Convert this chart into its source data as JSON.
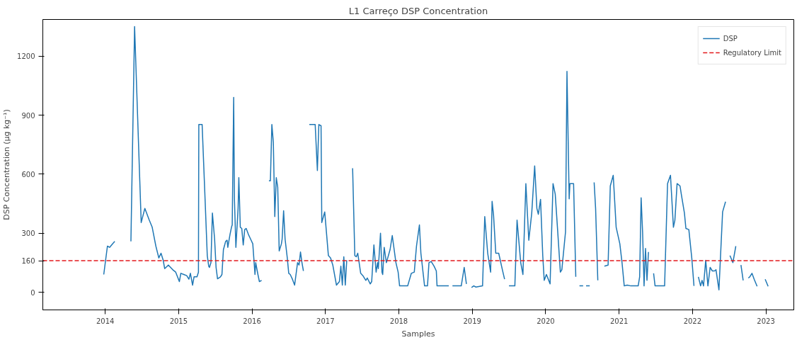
{
  "chart_data": {
    "type": "line",
    "title": "L1 Carreço DSP Concentration",
    "xlabel": "Samples",
    "ylabel": "DSP Concentration (µg kg⁻¹)",
    "xlim": [
      2013.15,
      2023.38
    ],
    "ylim": [
      -90,
      1386
    ],
    "xticks": [
      2014,
      2015,
      2016,
      2017,
      2018,
      2019,
      2020,
      2021,
      2022,
      2023
    ],
    "yticks": [
      0,
      160,
      300,
      600,
      900,
      1200
    ],
    "grid": false,
    "legend": "top right",
    "line_style": "solid",
    "marker": "none",
    "series": [
      {
        "name": "DSP",
        "color": "#1f77b4",
        "x": [
          2013.98,
          2014.03,
          2014.06,
          2014.1,
          2014.13,
          2014.23,
          2014.35,
          2014.4,
          2014.49,
          2014.54,
          2014.6,
          2014.64,
          2014.69,
          2014.73,
          2014.76,
          2014.79,
          2014.81,
          2014.86,
          2014.92,
          2014.96,
          2015.01,
          2015.03,
          2015.07,
          2015.11,
          2015.14,
          2015.16,
          2015.19,
          2015.21,
          2015.25,
          2015.27,
          2015.275,
          2015.32,
          2015.36,
          2015.39,
          2015.41,
          2015.42,
          2015.44,
          2015.46,
          2015.49,
          2015.51,
          2015.53,
          2015.57,
          2015.59,
          2015.61,
          2015.64,
          2015.66,
          2015.67,
          2015.7,
          2015.72,
          2015.73,
          2015.75,
          2015.76,
          2015.78,
          2015.81,
          2015.82,
          2015.84,
          2015.86,
          2015.88,
          2015.9,
          2015.92,
          2015.95,
          2015.98,
          2016.01,
          2016.04,
          2016.05,
          2016.08,
          2016.1,
          2016.13,
          2016.18,
          2016.23,
          2016.25,
          2016.27,
          2016.29,
          2016.31,
          2016.33,
          2016.35,
          2016.37,
          2016.4,
          2016.41,
          2016.43,
          2016.45,
          2016.48,
          2016.5,
          2016.52,
          2016.55,
          2016.58,
          2016.62,
          2016.64,
          2016.66,
          2016.68,
          2016.7,
          2016.74,
          2016.78,
          2016.86,
          2016.89,
          2016.91,
          2016.94,
          2016.95,
          2016.99,
          2017.04,
          2017.07,
          2017.1,
          2017.15,
          2017.19,
          2017.21,
          2017.23,
          2017.25,
          2017.27,
          2017.29,
          2017.32,
          2017.37,
          2017.4,
          2017.42,
          2017.44,
          2017.48,
          2017.51,
          2017.55,
          2017.57,
          2017.61,
          2017.63,
          2017.66,
          2017.69,
          2017.71,
          2017.72,
          2017.75,
          2017.77,
          2017.78,
          2017.8,
          2017.83,
          2017.88,
          2017.91,
          2017.96,
          2017.99,
          2018.01,
          2018.12,
          2018.17,
          2018.21,
          2018.24,
          2018.28,
          2018.3,
          2018.35,
          2018.39,
          2018.41,
          2018.44,
          2018.48,
          2018.51,
          2018.52,
          2018.68,
          2018.7,
          2018.73,
          2018.85,
          2018.89,
          2018.92,
          2018.96,
          2018.99,
          2019.02,
          2019.05,
          2019.14,
          2019.17,
          2019.21,
          2019.25,
          2019.27,
          2019.29,
          2019.32,
          2019.36,
          2019.41,
          2019.44,
          2019.47,
          2019.5,
          2019.58,
          2019.61,
          2019.66,
          2019.69,
          2019.73,
          2019.77,
          2019.81,
          2019.85,
          2019.88,
          2019.9,
          2019.93,
          2019.96,
          2019.98,
          2020.01,
          2020.06,
          2020.1,
          2020.13,
          2020.16,
          2020.2,
          2020.22,
          2020.27,
          2020.29,
          2020.32,
          2020.33,
          2020.38,
          2020.41,
          2020.44,
          2020.46,
          2020.51,
          2020.53,
          2020.55,
          2020.6,
          2020.63,
          2020.66,
          2020.68,
          2020.71,
          2020.75,
          2020.8,
          2020.85,
          2020.88,
          2020.92,
          2020.96,
          2021.01,
          2021.04,
          2021.07,
          2021.11,
          2021.16,
          2021.18,
          2021.26,
          2021.28,
          2021.3,
          2021.32,
          2021.34,
          2021.36,
          2021.38,
          2021.4,
          2021.43,
          2021.47,
          2021.49,
          2021.62,
          2021.66,
          2021.7,
          2021.74,
          2021.76,
          2021.79,
          2021.83,
          2021.85,
          2021.89,
          2021.91,
          2021.95,
          2021.99,
          2022.02,
          2022.06,
          2022.08,
          2022.11,
          2022.13,
          2022.15,
          2022.18,
          2022.21,
          2022.24,
          2022.27,
          2022.3,
          2022.32,
          2022.36,
          2022.41,
          2022.45,
          2022.48,
          2022.51,
          2022.55,
          2022.59,
          2022.63,
          2022.66,
          2022.69,
          2022.73,
          2022.76,
          2022.78,
          2022.81,
          2022.84,
          2022.88,
          2022.94,
          2022.99,
          2023.03
        ],
        "values": [
          90,
          234,
          228,
          246,
          258,
          null,
          258,
          1350,
          354,
          426,
          366,
          330,
          234,
          174,
          198,
          162,
          120,
          138,
          114,
          102,
          54,
          96,
          90,
          84,
          66,
          96,
          36,
          78,
          78,
          102,
          852,
          852,
          474,
          186,
          132,
          126,
          150,
          402,
          270,
          126,
          68,
          78,
          90,
          216,
          258,
          264,
          228,
          294,
          330,
          342,
          990,
          474,
          228,
          426,
          582,
          330,
          324,
          240,
          318,
          324,
          294,
          270,
          246,
          90,
          150,
          90,
          54,
          60,
          null,
          566,
          566,
          852,
          762,
          384,
          582,
          534,
          210,
          246,
          270,
          414,
          270,
          174,
          96,
          90,
          66,
          36,
          150,
          138,
          204,
          150,
          108,
          null,
          852,
          852,
          618,
          852,
          846,
          354,
          408,
          186,
          174,
          138,
          36,
          54,
          132,
          36,
          180,
          36,
          162,
          null,
          630,
          186,
          180,
          198,
          96,
          84,
          60,
          72,
          42,
          54,
          240,
          102,
          150,
          120,
          300,
          102,
          90,
          228,
          150,
          216,
          288,
          150,
          102,
          32,
          32,
          96,
          102,
          234,
          342,
          198,
          32,
          32,
          150,
          156,
          132,
          108,
          32,
          32,
          null,
          32,
          32,
          126,
          42,
          null,
          24,
          32,
          26,
          32,
          384,
          198,
          102,
          462,
          390,
          198,
          198,
          114,
          66,
          null,
          32,
          32,
          366,
          150,
          90,
          552,
          264,
          402,
          642,
          426,
          396,
          472,
          186,
          60,
          90,
          42,
          552,
          498,
          330,
          102,
          114,
          306,
          1122,
          474,
          552,
          552,
          78,
          null,
          32,
          32,
          null,
          32,
          32,
          null,
          558,
          426,
          60,
          null,
          132,
          138,
          540,
          594,
          330,
          246,
          150,
          32,
          36,
          32,
          32,
          32,
          78,
          480,
          306,
          32,
          222,
          60,
          204,
          null,
          96,
          32,
          32,
          552,
          594,
          330,
          366,
          552,
          540,
          492,
          402,
          324,
          318,
          174,
          32,
          null,
          78,
          32,
          60,
          32,
          162,
          32,
          126,
          108,
          108,
          114,
          12,
          408,
          460,
          null,
          186,
          150,
          234,
          null,
          138,
          60,
          null,
          72,
          78,
          96,
          66,
          30,
          null,
          66,
          30
        ]
      }
    ],
    "ref_lines": [
      {
        "axis": "y",
        "value": 160,
        "label": "Regulatory Limit",
        "color": "#e31a1c",
        "line_style": "dashed"
      }
    ]
  }
}
